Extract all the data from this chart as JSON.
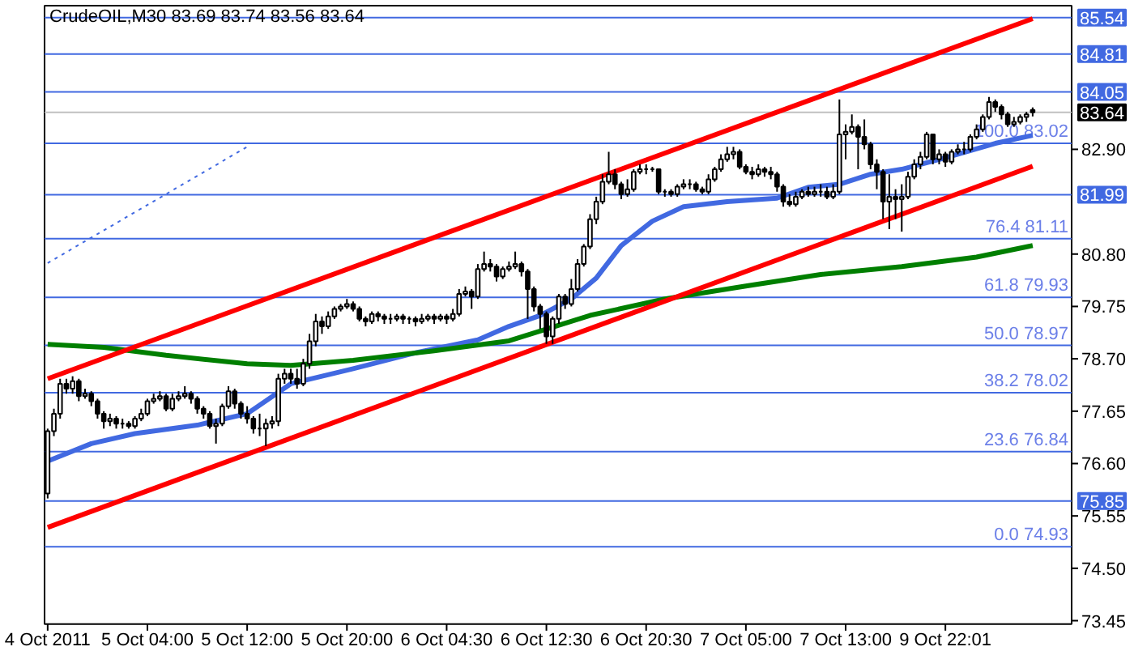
{
  "chart_data": {
    "type": "candlestick",
    "title": "CrudeOIL,M30  83.69 83.74 83.56 83.64",
    "categories": [
      "4 Oct 2011",
      null,
      null,
      null,
      null,
      null,
      null,
      null,
      null,
      null,
      null,
      null,
      null,
      null,
      null,
      null,
      "5 Oct 04:00",
      null,
      null,
      null,
      null,
      null,
      null,
      null,
      null,
      null,
      null,
      null,
      null,
      null,
      null,
      null,
      "5 Oct 12:00",
      null,
      null,
      null,
      null,
      null,
      null,
      null,
      null,
      null,
      null,
      null,
      null,
      null,
      null,
      null,
      "5 Oct 20:00",
      null,
      null,
      null,
      null,
      null,
      null,
      null,
      null,
      null,
      null,
      null,
      null,
      null,
      null,
      null,
      "6 Oct 04:30",
      null,
      null,
      null,
      null,
      null,
      null,
      null,
      null,
      null,
      null,
      null,
      null,
      null,
      null,
      null,
      "6 Oct 12:30",
      null,
      null,
      null,
      null,
      null,
      null,
      null,
      null,
      null,
      null,
      null,
      null,
      null,
      null,
      null,
      "6 Oct 20:30",
      null,
      null,
      null,
      null,
      null,
      null,
      null,
      null,
      null,
      null,
      null,
      null,
      null,
      null,
      null,
      "7 Oct 05:00",
      null,
      null,
      null,
      null,
      null,
      null,
      null,
      null,
      null,
      null,
      null,
      null,
      null,
      null,
      null,
      "7 Oct 13:00",
      null,
      null,
      null,
      null,
      null,
      null,
      null,
      null,
      null,
      null,
      null,
      null,
      null,
      null,
      null,
      "9 Oct 22:01",
      null,
      null,
      null,
      null,
      null,
      null,
      null,
      null,
      null,
      null,
      null,
      null,
      null,
      null
    ],
    "ohlc": [
      [
        76.0,
        77.3,
        75.9,
        77.25
      ],
      [
        77.25,
        77.7,
        77.15,
        77.6
      ],
      [
        77.6,
        78.3,
        77.5,
        78.2
      ],
      [
        78.2,
        78.3,
        78.0,
        78.1
      ],
      [
        78.1,
        78.35,
        78.0,
        78.25
      ],
      [
        78.25,
        78.3,
        77.85,
        77.95
      ],
      [
        77.95,
        78.1,
        77.9,
        78.0
      ],
      [
        78.0,
        78.05,
        77.75,
        77.85
      ],
      [
        77.85,
        77.9,
        77.5,
        77.6
      ],
      [
        77.6,
        77.65,
        77.3,
        77.45
      ],
      [
        77.45,
        77.6,
        77.35,
        77.5
      ],
      [
        77.5,
        77.55,
        77.3,
        77.4
      ],
      [
        77.4,
        77.5,
        77.3,
        77.4
      ],
      [
        77.4,
        77.45,
        77.3,
        77.35
      ],
      [
        77.35,
        77.55,
        77.3,
        77.5
      ],
      [
        77.5,
        77.7,
        77.45,
        77.6
      ],
      [
        77.6,
        77.9,
        77.55,
        77.85
      ],
      [
        77.85,
        78.0,
        77.8,
        77.9
      ],
      [
        77.9,
        78.05,
        77.85,
        77.95
      ],
      [
        77.95,
        78.0,
        77.65,
        77.7
      ],
      [
        77.7,
        78.0,
        77.65,
        77.9
      ],
      [
        77.9,
        78.05,
        77.85,
        77.95
      ],
      [
        77.95,
        78.15,
        77.9,
        78.0
      ],
      [
        78.0,
        78.05,
        77.8,
        77.9
      ],
      [
        77.9,
        77.95,
        77.6,
        77.7
      ],
      [
        77.7,
        77.75,
        77.5,
        77.6
      ],
      [
        77.6,
        77.65,
        77.3,
        77.35
      ],
      [
        77.35,
        77.5,
        77.0,
        77.4
      ],
      [
        77.4,
        77.8,
        77.35,
        77.75
      ],
      [
        77.75,
        78.15,
        77.7,
        78.05
      ],
      [
        78.05,
        78.1,
        77.7,
        77.8
      ],
      [
        77.8,
        77.85,
        77.5,
        77.6
      ],
      [
        77.6,
        77.75,
        77.4,
        77.5
      ],
      [
        77.5,
        77.55,
        77.2,
        77.3
      ],
      [
        77.3,
        77.6,
        77.15,
        77.3
      ],
      [
        77.3,
        77.5,
        76.95,
        77.4
      ],
      [
        77.4,
        77.55,
        77.3,
        77.45
      ],
      [
        77.45,
        78.4,
        77.35,
        78.3
      ],
      [
        78.3,
        78.5,
        78.2,
        78.4
      ],
      [
        78.4,
        78.5,
        78.2,
        78.3
      ],
      [
        78.3,
        78.5,
        78.1,
        78.2
      ],
      [
        78.2,
        78.7,
        78.15,
        78.6
      ],
      [
        78.6,
        79.2,
        78.5,
        79.05
      ],
      [
        79.05,
        79.6,
        78.95,
        79.45
      ],
      [
        79.45,
        79.55,
        79.2,
        79.35
      ],
      [
        79.35,
        79.65,
        79.3,
        79.55
      ],
      [
        79.55,
        79.75,
        79.5,
        79.7
      ],
      [
        79.7,
        79.8,
        79.65,
        79.75
      ],
      [
        79.75,
        79.9,
        79.7,
        79.8
      ],
      [
        79.8,
        79.85,
        79.65,
        79.7
      ],
      [
        79.7,
        79.75,
        79.45,
        79.5
      ],
      [
        79.5,
        79.55,
        79.35,
        79.45
      ],
      [
        79.45,
        79.65,
        79.4,
        79.6
      ],
      [
        79.6,
        79.65,
        79.45,
        79.55
      ],
      [
        79.55,
        79.6,
        79.4,
        79.5
      ],
      [
        79.5,
        79.6,
        79.4,
        79.5
      ],
      [
        79.5,
        79.6,
        79.45,
        79.55
      ],
      [
        79.55,
        79.6,
        79.4,
        79.5
      ],
      [
        79.5,
        79.55,
        79.4,
        79.5
      ],
      [
        79.5,
        79.55,
        79.35,
        79.45
      ],
      [
        79.45,
        79.6,
        79.4,
        79.5
      ],
      [
        79.5,
        79.6,
        79.45,
        79.55
      ],
      [
        79.55,
        79.6,
        79.4,
        79.5
      ],
      [
        79.5,
        79.6,
        79.45,
        79.55
      ],
      [
        79.55,
        79.6,
        79.4,
        79.5
      ],
      [
        79.5,
        79.7,
        79.45,
        79.6
      ],
      [
        79.6,
        80.1,
        79.55,
        80.0
      ],
      [
        80.0,
        80.15,
        79.95,
        80.05
      ],
      [
        80.05,
        80.1,
        79.7,
        79.95
      ],
      [
        79.95,
        80.6,
        79.9,
        80.5
      ],
      [
        80.5,
        80.85,
        80.45,
        80.6
      ],
      [
        80.6,
        80.7,
        80.45,
        80.55
      ],
      [
        80.55,
        80.6,
        80.25,
        80.35
      ],
      [
        80.35,
        80.55,
        80.3,
        80.5
      ],
      [
        80.5,
        80.65,
        80.45,
        80.55
      ],
      [
        80.55,
        80.85,
        80.5,
        80.6
      ],
      [
        80.6,
        80.65,
        80.35,
        80.45
      ],
      [
        80.45,
        80.5,
        79.5,
        80.1
      ],
      [
        80.1,
        80.15,
        79.65,
        79.75
      ],
      [
        79.75,
        79.8,
        79.3,
        79.6
      ],
      [
        79.6,
        79.65,
        79.0,
        79.15
      ],
      [
        79.15,
        79.55,
        79.0,
        79.5
      ],
      [
        79.5,
        80.0,
        79.4,
        79.95
      ],
      [
        79.95,
        80.0,
        79.7,
        79.8
      ],
      [
        79.8,
        80.3,
        79.75,
        80.1
      ],
      [
        80.1,
        80.7,
        80.05,
        80.6
      ],
      [
        80.6,
        81.0,
        80.55,
        80.95
      ],
      [
        80.95,
        81.6,
        80.9,
        81.5
      ],
      [
        81.5,
        81.95,
        81.4,
        81.85
      ],
      [
        81.85,
        82.4,
        81.8,
        82.25
      ],
      [
        82.25,
        82.85,
        82.2,
        82.4
      ],
      [
        82.4,
        82.5,
        82.1,
        82.2
      ],
      [
        82.2,
        82.25,
        81.9,
        82.0
      ],
      [
        82.0,
        82.3,
        81.95,
        82.1
      ],
      [
        82.1,
        82.5,
        82.05,
        82.45
      ],
      [
        82.45,
        82.6,
        82.4,
        82.5
      ],
      [
        82.5,
        82.6,
        82.4,
        82.5
      ],
      [
        82.5,
        82.55,
        82.45,
        82.5
      ],
      [
        82.5,
        82.5,
        82.0,
        82.05
      ],
      [
        82.05,
        82.1,
        81.95,
        82.05
      ],
      [
        82.05,
        82.1,
        81.95,
        82.0
      ],
      [
        82.0,
        82.2,
        81.95,
        82.15
      ],
      [
        82.15,
        82.3,
        82.1,
        82.2
      ],
      [
        82.2,
        82.3,
        82.1,
        82.2
      ],
      [
        82.2,
        82.25,
        82.05,
        82.1
      ],
      [
        82.1,
        82.15,
        82.0,
        82.05
      ],
      [
        82.05,
        82.4,
        82.0,
        82.3
      ],
      [
        82.3,
        82.55,
        82.25,
        82.5
      ],
      [
        82.5,
        82.8,
        82.45,
        82.7
      ],
      [
        82.7,
        82.95,
        82.65,
        82.8
      ],
      [
        82.8,
        82.95,
        82.7,
        82.85
      ],
      [
        82.85,
        82.9,
        82.5,
        82.55
      ],
      [
        82.55,
        82.6,
        82.4,
        82.45
      ],
      [
        82.45,
        82.55,
        82.3,
        82.4
      ],
      [
        82.4,
        82.6,
        82.35,
        82.5
      ],
      [
        82.5,
        82.55,
        82.35,
        82.45
      ],
      [
        82.45,
        82.55,
        82.3,
        82.4
      ],
      [
        82.4,
        82.45,
        82.05,
        82.15
      ],
      [
        82.15,
        82.2,
        81.75,
        81.85
      ],
      [
        81.85,
        82.0,
        81.75,
        81.8
      ],
      [
        81.8,
        82.05,
        81.75,
        81.95
      ],
      [
        81.95,
        82.1,
        81.9,
        82.05
      ],
      [
        82.05,
        82.15,
        81.95,
        82.0
      ],
      [
        82.0,
        82.15,
        81.95,
        82.05
      ],
      [
        82.05,
        82.2,
        81.95,
        82.05
      ],
      [
        82.05,
        82.15,
        81.9,
        81.95
      ],
      [
        81.95,
        82.2,
        81.9,
        82.05
      ],
      [
        82.05,
        83.9,
        82.0,
        83.2
      ],
      [
        83.2,
        83.4,
        82.7,
        83.25
      ],
      [
        83.25,
        83.6,
        83.2,
        83.35
      ],
      [
        83.35,
        83.4,
        82.5,
        83.15
      ],
      [
        83.15,
        83.5,
        82.9,
        83.0
      ],
      [
        83.0,
        83.05,
        82.5,
        82.6
      ],
      [
        82.6,
        82.7,
        82.1,
        82.45
      ],
      [
        82.45,
        82.5,
        81.5,
        81.85
      ],
      [
        81.85,
        82.4,
        81.3,
        81.95
      ],
      [
        81.95,
        82.1,
        81.5,
        81.9
      ],
      [
        81.9,
        82.2,
        81.25,
        81.95
      ],
      [
        81.95,
        82.45,
        81.9,
        82.35
      ],
      [
        82.35,
        82.7,
        82.3,
        82.6
      ],
      [
        82.6,
        82.85,
        82.5,
        82.75
      ],
      [
        82.75,
        83.25,
        82.7,
        83.2
      ],
      [
        83.2,
        83.2,
        82.6,
        82.7
      ],
      [
        82.7,
        82.9,
        82.6,
        82.8
      ],
      [
        82.8,
        82.85,
        82.55,
        82.65
      ],
      [
        82.65,
        82.9,
        82.6,
        82.85
      ],
      [
        82.85,
        83.0,
        82.8,
        82.9
      ],
      [
        82.9,
        83.05,
        82.8,
        82.9
      ],
      [
        82.9,
        83.2,
        82.85,
        83.15
      ],
      [
        83.15,
        83.4,
        83.1,
        83.3
      ],
      [
        83.3,
        83.6,
        83.25,
        83.55
      ],
      [
        83.55,
        83.95,
        83.5,
        83.85
      ],
      [
        83.85,
        83.9,
        83.65,
        83.75
      ],
      [
        83.75,
        83.8,
        83.5,
        83.6
      ],
      [
        83.6,
        83.65,
        83.35,
        83.4
      ],
      [
        83.4,
        83.55,
        83.35,
        83.45
      ],
      [
        83.45,
        83.6,
        83.4,
        83.55
      ],
      [
        83.55,
        83.65,
        83.45,
        83.6
      ],
      [
        83.69,
        83.74,
        83.56,
        83.64
      ]
    ],
    "series": [
      {
        "type": "line",
        "color": "#4169e1",
        "line_style": "solid",
        "values": [
          76.65,
          null,
          null,
          null,
          null,
          null,
          null,
          77.0,
          null,
          null,
          null,
          null,
          null,
          null,
          77.2,
          null,
          null,
          null,
          null,
          null,
          null,
          null,
          null,
          null,
          77.37,
          null,
          null,
          null,
          null,
          null,
          null,
          null,
          77.6,
          null,
          null,
          null,
          null,
          null,
          null,
          78.2,
          null,
          null,
          null,
          null,
          null,
          null,
          null,
          null,
          null,
          78.5,
          null,
          null,
          null,
          null,
          null,
          null,
          null,
          null,
          null,
          78.82,
          null,
          null,
          null,
          null,
          78.95,
          null,
          null,
          null,
          null,
          79.08,
          null,
          null,
          null,
          null,
          79.35,
          null,
          null,
          null,
          null,
          79.57,
          null,
          null,
          null,
          null,
          79.9,
          null,
          null,
          null,
          80.32,
          null,
          null,
          null,
          80.97,
          null,
          null,
          null,
          null,
          81.46,
          null,
          null,
          null,
          null,
          81.75,
          null,
          null,
          null,
          null,
          null,
          null,
          81.85,
          null,
          null,
          null,
          null,
          null,
          null,
          null,
          81.92,
          null,
          null,
          null,
          null,
          82.14,
          null,
          null,
          null,
          null,
          82.2,
          null,
          null,
          null,
          null,
          82.4,
          null,
          null,
          null,
          null,
          82.5,
          null,
          null,
          null,
          null,
          null,
          null,
          82.73,
          null,
          null,
          null,
          null,
          null,
          null,
          null,
          83.02,
          null,
          null,
          null,
          null,
          null,
          83.18
        ]
      },
      {
        "type": "line",
        "color": "#007f00",
        "line_style": "solid",
        "values": [
          78.99,
          null,
          null,
          null,
          null,
          null,
          null,
          null,
          null,
          78.93,
          null,
          null,
          null,
          null,
          null,
          null,
          null,
          null,
          null,
          78.77,
          null,
          null,
          null,
          null,
          null,
          null,
          null,
          null,
          null,
          null,
          null,
          null,
          78.6,
          null,
          null,
          null,
          null,
          null,
          null,
          78.57,
          null,
          null,
          null,
          null,
          null,
          null,
          null,
          null,
          null,
          78.67,
          null,
          null,
          null,
          null,
          null,
          null,
          null,
          null,
          null,
          null,
          null,
          null,
          78.86,
          null,
          null,
          null,
          null,
          null,
          null,
          null,
          null,
          null,
          null,
          null,
          79.06,
          null,
          null,
          null,
          null,
          null,
          null,
          null,
          null,
          null,
          null,
          null,
          null,
          79.57,
          null,
          null,
          null,
          null,
          null,
          null,
          null,
          null,
          null,
          null,
          null,
          79.9,
          null,
          null,
          null,
          null,
          null,
          null,
          null,
          null,
          null,
          null,
          null,
          null,
          80.16,
          null,
          null,
          null,
          null,
          null,
          null,
          null,
          null,
          null,
          null,
          null,
          80.39,
          null,
          null,
          null,
          null,
          null,
          null,
          null,
          null,
          null,
          null,
          null,
          null,
          80.55,
          null,
          null,
          null,
          null,
          null,
          null,
          null,
          null,
          null,
          null,
          null,
          80.74,
          null,
          null,
          null,
          null,
          null,
          null,
          null,
          null,
          80.97
        ]
      },
      {
        "type": "line",
        "color": "#ff0000",
        "line_style": "solid",
        "values": [
          78.3,
          null,
          null,
          null,
          null,
          null,
          null,
          null,
          null,
          null,
          null,
          null,
          null,
          null,
          null,
          null,
          null,
          null,
          null,
          null,
          null,
          null,
          null,
          null,
          null,
          null,
          null,
          null,
          null,
          null,
          null,
          null,
          null,
          null,
          null,
          null,
          null,
          null,
          null,
          null,
          null,
          null,
          null,
          null,
          null,
          null,
          null,
          null,
          null,
          null,
          null,
          null,
          null,
          null,
          null,
          null,
          null,
          null,
          null,
          null,
          null,
          null,
          null,
          null,
          null,
          null,
          null,
          null,
          null,
          null,
          null,
          null,
          null,
          null,
          null,
          null,
          null,
          null,
          null,
          null,
          null,
          null,
          null,
          null,
          null,
          null,
          null,
          null,
          null,
          null,
          null,
          null,
          null,
          null,
          null,
          null,
          null,
          null,
          null,
          null,
          null,
          null,
          null,
          null,
          null,
          null,
          null,
          null,
          null,
          null,
          null,
          null,
          null,
          null,
          null,
          null,
          null,
          null,
          null,
          null,
          null,
          null,
          null,
          null,
          null,
          null,
          null,
          null,
          null,
          null,
          null,
          null,
          null,
          null,
          null,
          null,
          null,
          null,
          null,
          null,
          null,
          null,
          null,
          null,
          null,
          null,
          null,
          null,
          null,
          null,
          null,
          null,
          null,
          null,
          null,
          null,
          null,
          null,
          85.52
        ]
      },
      {
        "type": "line",
        "color": "#ff0000",
        "line_style": "solid",
        "values": [
          75.32,
          null,
          null,
          null,
          null,
          null,
          null,
          null,
          null,
          null,
          null,
          null,
          null,
          null,
          null,
          null,
          null,
          null,
          null,
          null,
          null,
          null,
          null,
          null,
          null,
          null,
          null,
          null,
          null,
          null,
          null,
          null,
          null,
          null,
          null,
          null,
          null,
          null,
          null,
          null,
          null,
          null,
          null,
          null,
          null,
          null,
          null,
          null,
          null,
          null,
          null,
          null,
          null,
          null,
          null,
          null,
          null,
          null,
          null,
          null,
          null,
          null,
          null,
          null,
          null,
          null,
          null,
          null,
          null,
          null,
          null,
          null,
          null,
          null,
          null,
          null,
          null,
          null,
          null,
          null,
          null,
          null,
          null,
          null,
          null,
          null,
          null,
          null,
          null,
          null,
          null,
          null,
          null,
          null,
          null,
          null,
          null,
          null,
          null,
          null,
          null,
          null,
          null,
          null,
          null,
          null,
          null,
          null,
          null,
          null,
          null,
          null,
          null,
          null,
          null,
          null,
          null,
          null,
          null,
          null,
          null,
          null,
          null,
          null,
          null,
          null,
          null,
          null,
          null,
          null,
          null,
          null,
          null,
          null,
          null,
          null,
          null,
          null,
          null,
          null,
          null,
          null,
          null,
          null,
          null,
          null,
          null,
          null,
          null,
          null,
          null,
          null,
          null,
          null,
          null,
          null,
          null,
          null,
          82.56
        ]
      },
      {
        "type": "line",
        "color": "#4169e1",
        "line_style": "dotted",
        "values": [
          80.62,
          null,
          null,
          null,
          null,
          null,
          null,
          null,
          null,
          null,
          null,
          null,
          null,
          null,
          null,
          null,
          null,
          null,
          null,
          null,
          null,
          null,
          null,
          null,
          null,
          null,
          null,
          null,
          null,
          null,
          null,
          null,
          82.95,
          null,
          null,
          null,
          null,
          null,
          null,
          null,
          null,
          null,
          null,
          null,
          null,
          null,
          null,
          null,
          null,
          null,
          null,
          null,
          null,
          null,
          null,
          null,
          null,
          null,
          null,
          null,
          null,
          null,
          null,
          null,
          null,
          null,
          null,
          null,
          null,
          null,
          null,
          null,
          null,
          null,
          null,
          null,
          null,
          null,
          null,
          null,
          null,
          null,
          null,
          null,
          null,
          null,
          null,
          null,
          null,
          null,
          null,
          null,
          null,
          null,
          null,
          null,
          null,
          null,
          null,
          null,
          null,
          null,
          null,
          null,
          null,
          null,
          null,
          null,
          null,
          null,
          null,
          null,
          null,
          null,
          null,
          null,
          null,
          null,
          null,
          null,
          null,
          null,
          null,
          null,
          null,
          null,
          null,
          null,
          null,
          null,
          null,
          null,
          null,
          null,
          null,
          null,
          null,
          null,
          null,
          null,
          null,
          null,
          null,
          null,
          null,
          null,
          null,
          null,
          null,
          null,
          null,
          null,
          null,
          null,
          null,
          null,
          null,
          null,
          null
        ]
      }
    ],
    "ref_lines": [
      {
        "axis": "y",
        "value": 85.54,
        "label": "85.54",
        "color": "#4169e1"
      },
      {
        "axis": "y",
        "value": 84.81,
        "label": "84.81",
        "color": "#4169e1"
      },
      {
        "axis": "y",
        "value": 84.05,
        "label": "84.05",
        "color": "#4169e1"
      },
      {
        "axis": "y",
        "value": 83.64,
        "label": "83.64",
        "color": "#c0c0c0"
      },
      {
        "axis": "y",
        "value": 83.02,
        "label": "100.0 83.02",
        "color": "#4169e1"
      },
      {
        "axis": "y",
        "value": 81.99,
        "label": "81.99",
        "color": "#4169e1"
      },
      {
        "axis": "y",
        "value": 81.11,
        "label": "76.4 81.11",
        "color": "#4169e1"
      },
      {
        "axis": "y",
        "value": 79.93,
        "label": "61.8 79.93",
        "color": "#4169e1"
      },
      {
        "axis": "y",
        "value": 78.97,
        "label": "50.0 78.97",
        "color": "#4169e1"
      },
      {
        "axis": "y",
        "value": 78.02,
        "label": "38.2 78.02",
        "color": "#4169e1"
      },
      {
        "axis": "y",
        "value": 76.84,
        "label": "23.6 76.84",
        "color": "#4169e1"
      },
      {
        "axis": "y",
        "value": 75.85,
        "label": "75.85",
        "color": "#4169e1"
      },
      {
        "axis": "y",
        "value": 74.93,
        "label": "0.0 74.93",
        "color": "#4169e1"
      }
    ],
    "ylim": [
      73.38,
      85.78
    ],
    "yticks": [
      {
        "value": 82.9,
        "label": "82.90"
      },
      {
        "value": 80.8,
        "label": "80.80"
      },
      {
        "value": 79.75,
        "label": "79.75"
      },
      {
        "value": 78.7,
        "label": "78.70"
      },
      {
        "value": 77.65,
        "label": "77.65"
      },
      {
        "value": 76.6,
        "label": "76.60"
      },
      {
        "value": 75.55,
        "label": "75.55"
      },
      {
        "value": 74.5,
        "label": "74.50"
      },
      {
        "value": 73.45,
        "label": "73.45"
      }
    ],
    "grid": false,
    "marker": "none"
  }
}
